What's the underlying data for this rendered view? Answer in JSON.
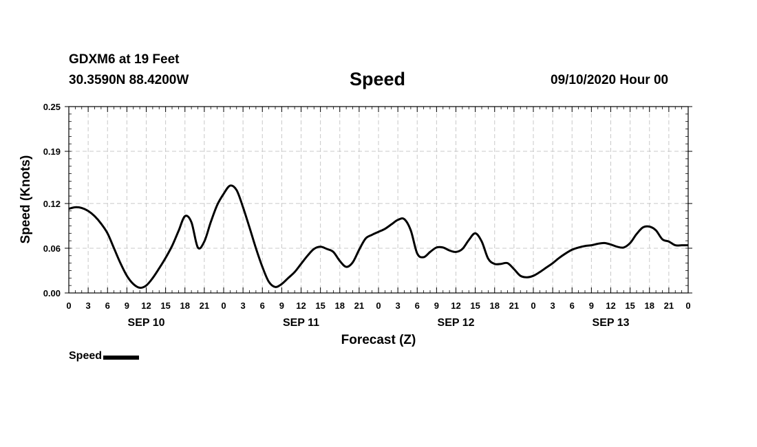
{
  "header": {
    "station": "GDXM6 at 19 Feet",
    "coords": "30.3590N 88.4200W",
    "title": "Speed",
    "date": "09/10/2020 Hour 00"
  },
  "chart_data": {
    "type": "line",
    "title": "Speed",
    "xlabel": "Forecast (Z)",
    "ylabel": "Speed (Knots)",
    "xlim": [
      0,
      96
    ],
    "ylim": [
      0,
      0.25
    ],
    "grid": true,
    "yticks": [
      0.0,
      0.06,
      0.12,
      0.19,
      0.25
    ],
    "ytick_labels": [
      "0.00",
      "0.06",
      "0.12",
      "0.19",
      "0.25"
    ],
    "xticks": [
      0,
      3,
      6,
      9,
      12,
      15,
      18,
      21,
      24,
      27,
      30,
      33,
      36,
      39,
      42,
      45,
      48,
      51,
      54,
      57,
      60,
      63,
      66,
      69,
      72,
      75,
      78,
      81,
      84,
      87,
      90,
      93,
      96
    ],
    "xtick_labels": [
      "0",
      "3",
      "6",
      "9",
      "12",
      "15",
      "18",
      "21",
      "0",
      "3",
      "6",
      "9",
      "12",
      "15",
      "18",
      "21",
      "0",
      "3",
      "6",
      "9",
      "12",
      "15",
      "18",
      "21",
      "0",
      "3",
      "6",
      "9",
      "12",
      "15",
      "18",
      "21",
      "0"
    ],
    "day_labels": [
      {
        "label": "SEP 10",
        "hour": 12
      },
      {
        "label": "SEP 11",
        "hour": 36
      },
      {
        "label": "SEP 12",
        "hour": 60
      },
      {
        "label": "SEP 13",
        "hour": 84
      }
    ],
    "legend_position": "bottom-left",
    "series": [
      {
        "name": "Speed",
        "color": "#000000",
        "x": [
          0,
          1,
          2,
          3,
          4,
          5,
          6,
          7,
          8,
          9,
          10,
          11,
          12,
          13,
          14,
          15,
          16,
          17,
          18,
          19,
          20,
          21,
          22,
          23,
          24,
          25,
          26,
          27,
          28,
          29,
          30,
          31,
          32,
          33,
          34,
          35,
          36,
          37,
          38,
          39,
          40,
          41,
          42,
          43,
          44,
          45,
          46,
          47,
          48,
          49,
          50,
          51,
          52,
          53,
          54,
          55,
          56,
          57,
          58,
          59,
          60,
          61,
          62,
          63,
          64,
          65,
          66,
          67,
          68,
          69,
          70,
          71,
          72,
          73,
          74,
          75,
          76,
          77,
          78,
          79,
          80,
          81,
          82,
          83,
          84,
          85,
          86,
          87,
          88,
          89,
          90,
          91,
          92,
          93,
          94,
          95,
          96
        ],
        "values": [
          0.113,
          0.115,
          0.114,
          0.11,
          0.103,
          0.093,
          0.08,
          0.06,
          0.04,
          0.023,
          0.012,
          0.007,
          0.01,
          0.02,
          0.033,
          0.047,
          0.063,
          0.083,
          0.103,
          0.095,
          0.061,
          0.069,
          0.095,
          0.118,
          0.133,
          0.144,
          0.138,
          0.115,
          0.088,
          0.06,
          0.035,
          0.015,
          0.008,
          0.012,
          0.02,
          0.028,
          0.039,
          0.05,
          0.059,
          0.062,
          0.059,
          0.055,
          0.043,
          0.035,
          0.041,
          0.058,
          0.073,
          0.078,
          0.082,
          0.086,
          0.092,
          0.098,
          0.099,
          0.084,
          0.053,
          0.048,
          0.055,
          0.061,
          0.061,
          0.057,
          0.055,
          0.059,
          0.071,
          0.08,
          0.069,
          0.046,
          0.039,
          0.039,
          0.04,
          0.032,
          0.023,
          0.021,
          0.023,
          0.028,
          0.034,
          0.04,
          0.047,
          0.053,
          0.058,
          0.061,
          0.063,
          0.064,
          0.066,
          0.067,
          0.065,
          0.062,
          0.061,
          0.067,
          0.079,
          0.088,
          0.089,
          0.084,
          0.072,
          0.069,
          0.064,
          0.064,
          0.064
        ]
      }
    ]
  },
  "legend": {
    "label": "Speed"
  }
}
